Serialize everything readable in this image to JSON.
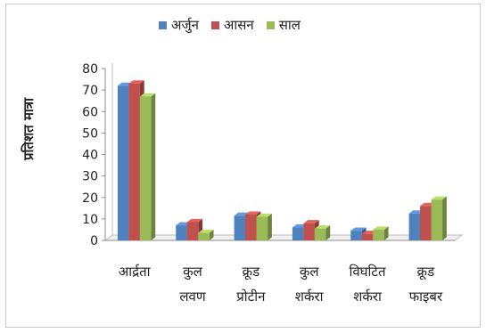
{
  "chart_data": {
    "type": "bar",
    "ylabel": "प्रतिशत मात्रा",
    "ylim": [
      0,
      80
    ],
    "yticks": [
      0,
      10,
      20,
      30,
      40,
      50,
      60,
      70,
      80
    ],
    "grid": false,
    "legend_position": "top",
    "categories": [
      [
        "आर्द्रता"
      ],
      [
        "कुल",
        "लवण"
      ],
      [
        "क्रूड",
        "प्रोटीन"
      ],
      [
        "कुल",
        "शर्करा"
      ],
      [
        "विघटित",
        "शर्करा"
      ],
      [
        "क्रूड",
        "फाइबर"
      ]
    ],
    "series": [
      {
        "name": "अर्जुन",
        "color": "#4f81bd",
        "values": [
          72,
          7,
          11.5,
          6,
          4.5,
          12.5
        ]
      },
      {
        "name": "आसन",
        "color": "#c0504d",
        "values": [
          73,
          8.5,
          12,
          8,
          3,
          16
        ]
      },
      {
        "name": "साल",
        "color": "#9bbb59",
        "values": [
          67,
          3.5,
          11,
          5.5,
          5,
          19
        ]
      }
    ]
  }
}
